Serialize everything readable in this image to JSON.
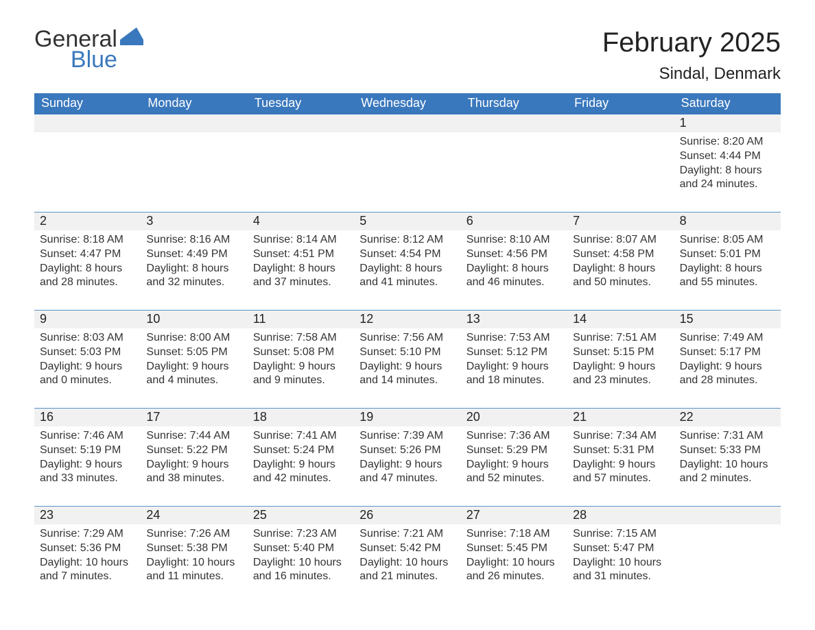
{
  "logo": {
    "word1": "General",
    "word2": "Blue"
  },
  "title": "February 2025",
  "location": "Sindal, Denmark",
  "colors": {
    "header_bg": "#3a78bd",
    "week_divider": "#5a92c9",
    "day_band": "#f1f1f1",
    "text": "#333333"
  },
  "typography": {
    "title_fontsize": 40,
    "location_fontsize": 24,
    "dow_fontsize": 18,
    "day_num_fontsize": 18,
    "body_fontsize": 16
  },
  "days_of_week": [
    "Sunday",
    "Monday",
    "Tuesday",
    "Wednesday",
    "Thursday",
    "Friday",
    "Saturday"
  ],
  "labels": {
    "sunrise": "Sunrise:",
    "sunset": "Sunset:",
    "daylight": "Daylight:"
  },
  "weeks": [
    [
      {
        "empty": true
      },
      {
        "empty": true
      },
      {
        "empty": true
      },
      {
        "empty": true
      },
      {
        "empty": true
      },
      {
        "empty": true
      },
      {
        "n": "1",
        "sunrise": "8:20 AM",
        "sunset": "4:44 PM",
        "daylight": "8 hours and 24 minutes."
      }
    ],
    [
      {
        "n": "2",
        "sunrise": "8:18 AM",
        "sunset": "4:47 PM",
        "daylight": "8 hours and 28 minutes."
      },
      {
        "n": "3",
        "sunrise": "8:16 AM",
        "sunset": "4:49 PM",
        "daylight": "8 hours and 32 minutes."
      },
      {
        "n": "4",
        "sunrise": "8:14 AM",
        "sunset": "4:51 PM",
        "daylight": "8 hours and 37 minutes."
      },
      {
        "n": "5",
        "sunrise": "8:12 AM",
        "sunset": "4:54 PM",
        "daylight": "8 hours and 41 minutes."
      },
      {
        "n": "6",
        "sunrise": "8:10 AM",
        "sunset": "4:56 PM",
        "daylight": "8 hours and 46 minutes."
      },
      {
        "n": "7",
        "sunrise": "8:07 AM",
        "sunset": "4:58 PM",
        "daylight": "8 hours and 50 minutes."
      },
      {
        "n": "8",
        "sunrise": "8:05 AM",
        "sunset": "5:01 PM",
        "daylight": "8 hours and 55 minutes."
      }
    ],
    [
      {
        "n": "9",
        "sunrise": "8:03 AM",
        "sunset": "5:03 PM",
        "daylight": "9 hours and 0 minutes."
      },
      {
        "n": "10",
        "sunrise": "8:00 AM",
        "sunset": "5:05 PM",
        "daylight": "9 hours and 4 minutes."
      },
      {
        "n": "11",
        "sunrise": "7:58 AM",
        "sunset": "5:08 PM",
        "daylight": "9 hours and 9 minutes."
      },
      {
        "n": "12",
        "sunrise": "7:56 AM",
        "sunset": "5:10 PM",
        "daylight": "9 hours and 14 minutes."
      },
      {
        "n": "13",
        "sunrise": "7:53 AM",
        "sunset": "5:12 PM",
        "daylight": "9 hours and 18 minutes."
      },
      {
        "n": "14",
        "sunrise": "7:51 AM",
        "sunset": "5:15 PM",
        "daylight": "9 hours and 23 minutes."
      },
      {
        "n": "15",
        "sunrise": "7:49 AM",
        "sunset": "5:17 PM",
        "daylight": "9 hours and 28 minutes."
      }
    ],
    [
      {
        "n": "16",
        "sunrise": "7:46 AM",
        "sunset": "5:19 PM",
        "daylight": "9 hours and 33 minutes."
      },
      {
        "n": "17",
        "sunrise": "7:44 AM",
        "sunset": "5:22 PM",
        "daylight": "9 hours and 38 minutes."
      },
      {
        "n": "18",
        "sunrise": "7:41 AM",
        "sunset": "5:24 PM",
        "daylight": "9 hours and 42 minutes."
      },
      {
        "n": "19",
        "sunrise": "7:39 AM",
        "sunset": "5:26 PM",
        "daylight": "9 hours and 47 minutes."
      },
      {
        "n": "20",
        "sunrise": "7:36 AM",
        "sunset": "5:29 PM",
        "daylight": "9 hours and 52 minutes."
      },
      {
        "n": "21",
        "sunrise": "7:34 AM",
        "sunset": "5:31 PM",
        "daylight": "9 hours and 57 minutes."
      },
      {
        "n": "22",
        "sunrise": "7:31 AM",
        "sunset": "5:33 PM",
        "daylight": "10 hours and 2 minutes."
      }
    ],
    [
      {
        "n": "23",
        "sunrise": "7:29 AM",
        "sunset": "5:36 PM",
        "daylight": "10 hours and 7 minutes."
      },
      {
        "n": "24",
        "sunrise": "7:26 AM",
        "sunset": "5:38 PM",
        "daylight": "10 hours and 11 minutes."
      },
      {
        "n": "25",
        "sunrise": "7:23 AM",
        "sunset": "5:40 PM",
        "daylight": "10 hours and 16 minutes."
      },
      {
        "n": "26",
        "sunrise": "7:21 AM",
        "sunset": "5:42 PM",
        "daylight": "10 hours and 21 minutes."
      },
      {
        "n": "27",
        "sunrise": "7:18 AM",
        "sunset": "5:45 PM",
        "daylight": "10 hours and 26 minutes."
      },
      {
        "n": "28",
        "sunrise": "7:15 AM",
        "sunset": "5:47 PM",
        "daylight": "10 hours and 31 minutes."
      },
      {
        "empty": true
      }
    ]
  ]
}
